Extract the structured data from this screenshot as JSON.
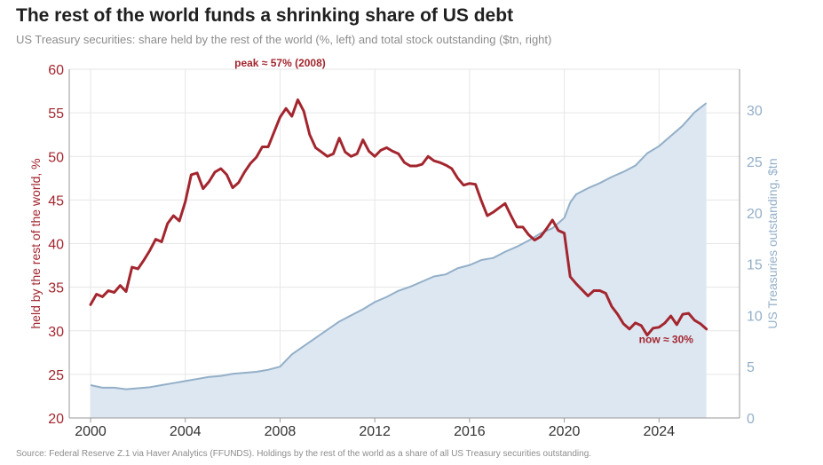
{
  "header": {
    "title": "The rest of the world funds a shrinking share of US debt",
    "subtitle": "US Treasury securities: share held by the rest of the world (%, left) and total stock outstanding ($tn, right)"
  },
  "footer": {
    "source": "Source: Federal Reserve Z.1 via Haver Analytics (FFUNDS). Holdings by the rest of the world as a share of all US Treasury securities outstanding."
  },
  "colors": {
    "share": "#a3262f",
    "stock_line": "#93afc8",
    "stock_fill": "#dde7f2",
    "grid": "#e6e6e6",
    "axis": "#9a9a9a",
    "x_tick_text": "#333333"
  },
  "chart_data": {
    "type": "line",
    "grid": true,
    "x_ticks": [
      "2000",
      "2004",
      "2008",
      "2012",
      "2016",
      "2020",
      "2024"
    ],
    "xlim": [
      1999.1,
      2027.4
    ],
    "y_left": {
      "label": "held by the rest of the world, %",
      "lim": [
        20,
        60
      ],
      "ticks": [
        "20",
        "25",
        "30",
        "35",
        "40",
        "45",
        "50",
        "55",
        "60"
      ]
    },
    "y_right": {
      "label": "US Treasuries outstanding, $tn",
      "lim": [
        0,
        34
      ],
      "ticks": [
        "0",
        "5",
        "10",
        "15",
        "20",
        "25",
        "30"
      ]
    },
    "annotations": [
      {
        "name": "peak-annotation",
        "text": "peak ≈ 57% (2008)",
        "x": 2008.0,
        "y": 60.3,
        "axis": "left"
      },
      {
        "name": "now-annotation",
        "text": "now ≈ 30%",
        "x": 2024.3,
        "y": 28.6,
        "axis": "left"
      }
    ],
    "series": [
      {
        "key": "share",
        "axis": "left",
        "x": [
          2000.0,
          2000.25,
          2000.5,
          2000.75,
          2001.0,
          2001.25,
          2001.5,
          2001.75,
          2002.0,
          2002.25,
          2002.5,
          2002.75,
          2003.0,
          2003.25,
          2003.5,
          2003.75,
          2004.0,
          2004.25,
          2004.5,
          2004.75,
          2005.0,
          2005.25,
          2005.5,
          2005.75,
          2006.0,
          2006.25,
          2006.5,
          2006.75,
          2007.0,
          2007.25,
          2007.5,
          2007.75,
          2008.0,
          2008.25,
          2008.5,
          2008.75,
          2009.0,
          2009.25,
          2009.5,
          2009.75,
          2010.0,
          2010.25,
          2010.5,
          2010.75,
          2011.0,
          2011.25,
          2011.5,
          2011.75,
          2012.0,
          2012.25,
          2012.5,
          2012.75,
          2013.0,
          2013.25,
          2013.5,
          2013.75,
          2014.0,
          2014.25,
          2014.5,
          2014.75,
          2015.0,
          2015.25,
          2015.5,
          2015.75,
          2016.0,
          2016.25,
          2016.5,
          2016.75,
          2017.0,
          2017.25,
          2017.5,
          2017.75,
          2018.0,
          2018.25,
          2018.5,
          2018.75,
          2019.0,
          2019.25,
          2019.5,
          2019.75,
          2020.0,
          2020.25,
          2020.5,
          2020.75,
          2021.0,
          2021.25,
          2021.5,
          2021.75,
          2022.0,
          2022.25,
          2022.5,
          2022.75,
          2023.0,
          2023.25,
          2023.5,
          2023.75,
          2024.0,
          2024.25,
          2024.5,
          2024.75,
          2025.0,
          2025.25,
          2025.5,
          2025.75,
          2026.0
        ],
        "values": [
          33.0,
          34.2,
          33.9,
          34.6,
          34.4,
          35.2,
          34.5,
          37.3,
          37.1,
          38.1,
          39.2,
          40.5,
          40.2,
          42.3,
          43.2,
          42.6,
          44.8,
          47.9,
          48.1,
          46.3,
          47.1,
          48.2,
          48.6,
          47.9,
          46.4,
          47.0,
          48.2,
          49.2,
          49.9,
          51.1,
          51.1,
          52.8,
          54.5,
          55.5,
          54.6,
          56.5,
          55.2,
          52.5,
          51.0,
          50.5,
          50.0,
          50.3,
          52.1,
          50.5,
          50.0,
          50.3,
          51.9,
          50.6,
          50.0,
          50.7,
          51.0,
          50.6,
          50.3,
          49.3,
          48.9,
          48.9,
          49.1,
          50.0,
          49.5,
          49.3,
          49.0,
          48.6,
          47.5,
          46.7,
          46.9,
          46.8,
          44.9,
          43.2,
          43.6,
          44.1,
          44.6,
          43.2,
          41.9,
          41.9,
          41.0,
          40.4,
          40.8,
          41.7,
          42.7,
          41.5,
          41.2,
          36.2,
          35.4,
          34.7,
          34.0,
          34.6,
          34.6,
          34.3,
          32.8,
          31.9,
          30.8,
          30.2,
          30.9,
          30.6,
          29.5,
          30.3,
          30.4,
          30.9,
          31.7,
          30.7,
          31.9,
          32.0,
          31.2,
          30.8,
          30.2
        ]
      },
      {
        "key": "stock",
        "axis": "right",
        "x": [
          2000.0,
          2000.5,
          2001.0,
          2001.5,
          2002.0,
          2002.5,
          2003.0,
          2003.5,
          2004.0,
          2004.5,
          2005.0,
          2005.5,
          2006.0,
          2006.5,
          2007.0,
          2007.5,
          2008.0,
          2008.5,
          2009.0,
          2009.5,
          2010.0,
          2010.5,
          2011.0,
          2011.5,
          2012.0,
          2012.5,
          2013.0,
          2013.5,
          2014.0,
          2014.5,
          2015.0,
          2015.5,
          2016.0,
          2016.5,
          2017.0,
          2017.5,
          2018.0,
          2018.5,
          2019.0,
          2019.5,
          2020.0,
          2020.25,
          2020.5,
          2021.0,
          2021.5,
          2022.0,
          2022.5,
          2023.0,
          2023.5,
          2024.0,
          2024.5,
          2025.0,
          2025.5,
          2026.0
        ],
        "values": [
          3.2,
          2.95,
          2.95,
          2.8,
          2.9,
          3.0,
          3.2,
          3.4,
          3.6,
          3.8,
          4.0,
          4.1,
          4.3,
          4.4,
          4.5,
          4.7,
          5.0,
          6.2,
          7.0,
          7.8,
          8.6,
          9.4,
          10.0,
          10.6,
          11.3,
          11.8,
          12.4,
          12.8,
          13.3,
          13.8,
          14.0,
          14.6,
          14.9,
          15.4,
          15.6,
          16.2,
          16.7,
          17.3,
          18.0,
          18.5,
          19.5,
          21.0,
          21.8,
          22.4,
          22.9,
          23.5,
          24.0,
          24.6,
          25.8,
          26.5,
          27.5,
          28.5,
          29.8,
          30.7
        ]
      }
    ]
  }
}
